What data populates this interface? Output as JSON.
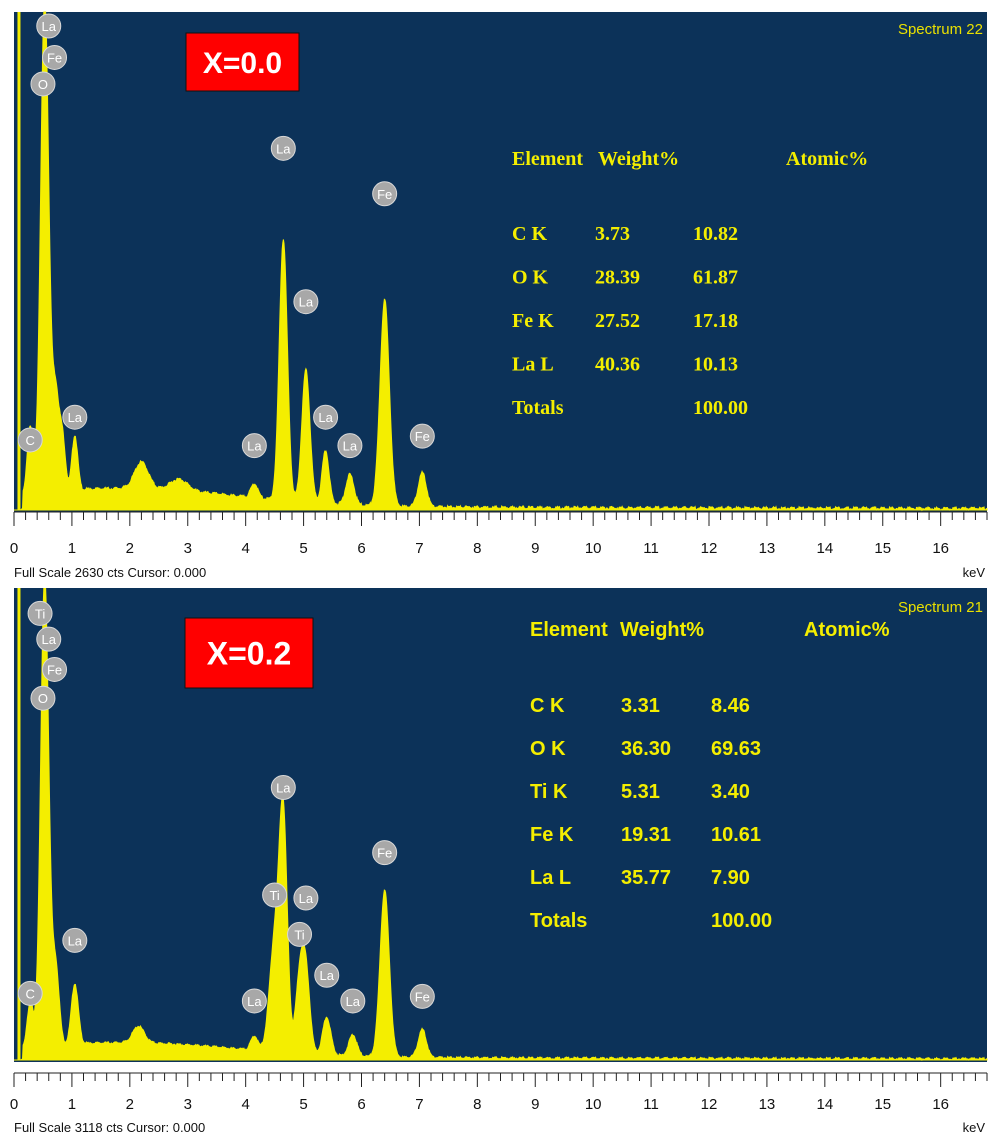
{
  "chart_data": [
    {
      "type": "area",
      "spectrum_label": "Spectrum 22",
      "sample_label": "X=0.0",
      "xlabel": "keV",
      "xlim": [
        0,
        16.8
      ],
      "ylim": [
        0,
        2630
      ],
      "x_ticks": [
        "0",
        "1",
        "2",
        "3",
        "4",
        "5",
        "6",
        "7",
        "8",
        "9",
        "10",
        "11",
        "12",
        "13",
        "14",
        "15",
        "16"
      ],
      "footer": "Full Scale 2630 cts Cursor: 0.000",
      "peaks": [
        {
          "x": 0.28,
          "y": 360,
          "w": 0.05
        },
        {
          "x": 0.53,
          "y": 2630,
          "w": 0.07
        },
        {
          "x": 0.72,
          "y": 520,
          "w": 0.06
        },
        {
          "x": 0.84,
          "y": 260,
          "w": 0.05
        },
        {
          "x": 1.05,
          "y": 290,
          "w": 0.05
        },
        {
          "x": 2.2,
          "y": 140,
          "w": 0.12
        },
        {
          "x": 2.85,
          "y": 60,
          "w": 0.15
        },
        {
          "x": 4.15,
          "y": 75,
          "w": 0.06
        },
        {
          "x": 4.65,
          "y": 1380,
          "w": 0.07
        },
        {
          "x": 5.04,
          "y": 700,
          "w": 0.07
        },
        {
          "x": 5.38,
          "y": 280,
          "w": 0.06
        },
        {
          "x": 5.8,
          "y": 160,
          "w": 0.07
        },
        {
          "x": 6.4,
          "y": 1090,
          "w": 0.08
        },
        {
          "x": 7.05,
          "y": 180,
          "w": 0.07
        }
      ],
      "element_labels": [
        {
          "text": "La",
          "x": 0.6,
          "y": 2640
        },
        {
          "text": "Fe",
          "x": 0.7,
          "y": 2390
        },
        {
          "text": "O",
          "x": 0.5,
          "y": 2250
        },
        {
          "text": "La",
          "x": 4.65,
          "y": 1910
        },
        {
          "text": "Fe",
          "x": 6.4,
          "y": 1670
        },
        {
          "text": "La",
          "x": 5.04,
          "y": 1100
        },
        {
          "text": "La",
          "x": 1.05,
          "y": 490
        },
        {
          "text": "La",
          "x": 5.38,
          "y": 490
        },
        {
          "text": "C",
          "x": 0.28,
          "y": 370
        },
        {
          "text": "La",
          "x": 4.15,
          "y": 340
        },
        {
          "text": "La",
          "x": 5.8,
          "y": 340
        },
        {
          "text": "Fe",
          "x": 7.05,
          "y": 390
        }
      ],
      "table": {
        "headers": [
          "Element",
          "Weight%",
          "Atomic%"
        ],
        "rows": [
          [
            "C K",
            "3.73",
            "10.82"
          ],
          [
            "O K",
            "28.39",
            "61.87"
          ],
          [
            "Fe K",
            "27.52",
            "17.18"
          ],
          [
            "La L",
            "40.36",
            "10.13"
          ],
          [
            "Totals",
            "",
            "100.00"
          ]
        ]
      }
    },
    {
      "type": "area",
      "spectrum_label": "Spectrum 21",
      "sample_label": "X=0.2",
      "xlabel": "keV",
      "xlim": [
        0,
        16.8
      ],
      "ylim": [
        0,
        3118
      ],
      "x_ticks": [
        "0",
        "1",
        "2",
        "3",
        "4",
        "5",
        "6",
        "7",
        "8",
        "9",
        "10",
        "11",
        "12",
        "13",
        "14",
        "15",
        "16"
      ],
      "footer": "Full Scale 3118 cts Cursor: 0.000",
      "peaks": [
        {
          "x": 0.28,
          "y": 300,
          "w": 0.05
        },
        {
          "x": 0.53,
          "y": 3118,
          "w": 0.07
        },
        {
          "x": 0.72,
          "y": 520,
          "w": 0.06
        },
        {
          "x": 1.05,
          "y": 400,
          "w": 0.06
        },
        {
          "x": 2.15,
          "y": 110,
          "w": 0.1
        },
        {
          "x": 4.15,
          "y": 95,
          "w": 0.06
        },
        {
          "x": 4.5,
          "y": 720,
          "w": 0.09
        },
        {
          "x": 4.65,
          "y": 1500,
          "w": 0.07
        },
        {
          "x": 4.93,
          "y": 460,
          "w": 0.07
        },
        {
          "x": 5.04,
          "y": 520,
          "w": 0.07
        },
        {
          "x": 5.4,
          "y": 250,
          "w": 0.07
        },
        {
          "x": 5.85,
          "y": 140,
          "w": 0.07
        },
        {
          "x": 6.4,
          "y": 1100,
          "w": 0.08
        },
        {
          "x": 7.05,
          "y": 185,
          "w": 0.07
        }
      ],
      "element_labels": [
        {
          "text": "Ti",
          "x": 0.45,
          "y": 2950
        },
        {
          "text": "La",
          "x": 0.6,
          "y": 2780
        },
        {
          "text": "Fe",
          "x": 0.7,
          "y": 2580
        },
        {
          "text": "O",
          "x": 0.5,
          "y": 2390
        },
        {
          "text": "La",
          "x": 4.65,
          "y": 1800
        },
        {
          "text": "Fe",
          "x": 6.4,
          "y": 1370
        },
        {
          "text": "Ti",
          "x": 4.5,
          "y": 1090
        },
        {
          "text": "La",
          "x": 5.04,
          "y": 1070
        },
        {
          "text": "Ti",
          "x": 4.93,
          "y": 830
        },
        {
          "text": "La",
          "x": 1.05,
          "y": 790
        },
        {
          "text": "La",
          "x": 5.4,
          "y": 560
        },
        {
          "text": "C",
          "x": 0.28,
          "y": 440
        },
        {
          "text": "La",
          "x": 4.15,
          "y": 390
        },
        {
          "text": "La",
          "x": 5.85,
          "y": 390
        },
        {
          "text": "Fe",
          "x": 7.05,
          "y": 420
        }
      ],
      "table": {
        "headers": [
          "Element",
          "Weight%",
          "Atomic%"
        ],
        "rows": [
          [
            "C K",
            "3.31",
            "8.46"
          ],
          [
            "O K",
            "36.30",
            "69.63"
          ],
          [
            "Ti K",
            "5.31",
            "3.40"
          ],
          [
            "Fe K",
            "19.31",
            "10.61"
          ],
          [
            "La L",
            "35.77",
            "7.90"
          ],
          [
            "Totals",
            "",
            "100.00"
          ]
        ]
      }
    }
  ]
}
